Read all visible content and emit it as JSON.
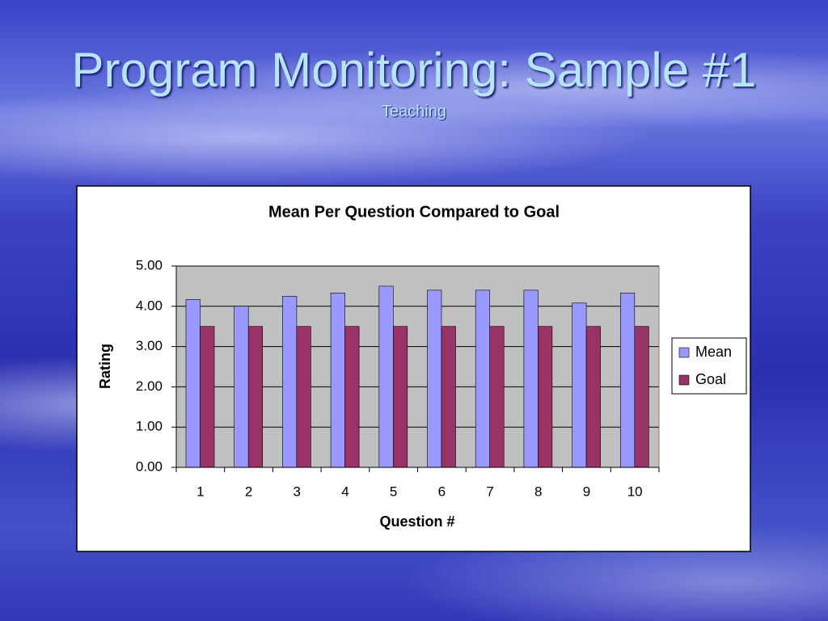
{
  "slide": {
    "title": "Program Monitoring: Sample #1",
    "subtitle": "Teaching"
  },
  "chart_data": {
    "type": "bar",
    "title": "Mean Per Question Compared to Goal",
    "x_label": "Question #",
    "y_label": "Rating",
    "categories": [
      "1",
      "2",
      "3",
      "4",
      "5",
      "6",
      "7",
      "8",
      "9",
      "10"
    ],
    "series": [
      {
        "name": "Mean",
        "color": "#9999ff",
        "values": [
          4.17,
          4.0,
          4.25,
          4.33,
          4.5,
          4.4,
          4.4,
          4.4,
          4.08,
          4.33
        ]
      },
      {
        "name": "Goal",
        "color": "#993366",
        "values": [
          3.5,
          3.5,
          3.5,
          3.5,
          3.5,
          3.5,
          3.5,
          3.5,
          3.5,
          3.5
        ]
      }
    ],
    "ylim": [
      0,
      5
    ],
    "yticks": [
      {
        "value": 0,
        "label": "0.00"
      },
      {
        "value": 1,
        "label": "1.00"
      },
      {
        "value": 2,
        "label": "2.00"
      },
      {
        "value": 3,
        "label": "3.00"
      },
      {
        "value": 4,
        "label": "4.00"
      },
      {
        "value": 5,
        "label": "5.00"
      }
    ],
    "grid": true,
    "legend": "right"
  }
}
